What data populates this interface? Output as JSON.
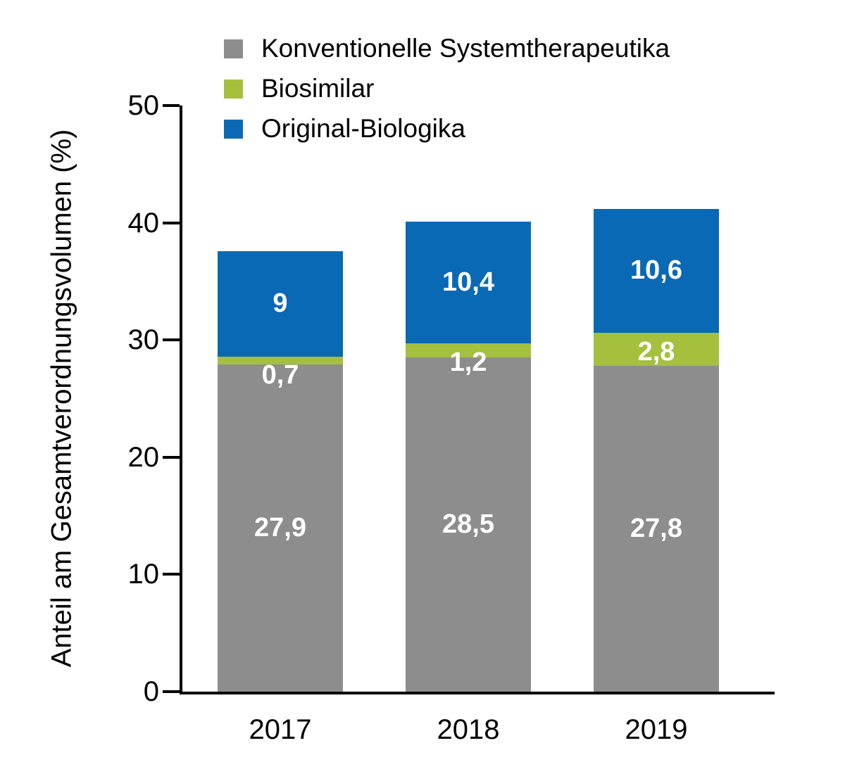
{
  "chart_data": {
    "type": "bar",
    "stacked": true,
    "title": "",
    "xlabel": "",
    "ylabel": "Anteil am Gesamtverordnungsvolumen (%)",
    "ylim": [
      0,
      50
    ],
    "yticks": [
      0,
      10,
      20,
      30,
      40,
      50
    ],
    "grid": false,
    "legend_position": "top-left",
    "categories": [
      "2017",
      "2018",
      "2019"
    ],
    "series": [
      {
        "name": "Konventionelle Systemtherapeutika",
        "color": "#8d8d8d",
        "values": [
          27.9,
          28.5,
          27.8
        ],
        "labels": [
          "27,9",
          "28,5",
          "27,8"
        ]
      },
      {
        "name": "Biosimilar",
        "color": "#a5c03d",
        "values": [
          0.7,
          1.2,
          2.8
        ],
        "labels": [
          "0,7",
          "1,2",
          "2,8"
        ]
      },
      {
        "name": "Original-Biologika",
        "color": "#0a69b4",
        "values": [
          9,
          10.4,
          10.6
        ],
        "labels": [
          "9",
          "10,4",
          "10,6"
        ]
      }
    ],
    "totals": [
      37.6,
      40.1,
      41.2
    ]
  }
}
